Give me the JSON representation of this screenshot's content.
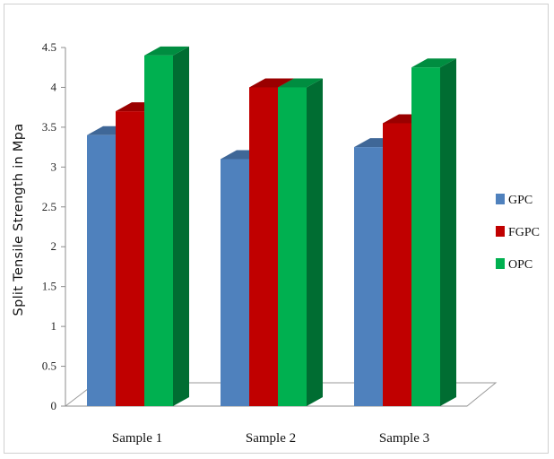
{
  "chart_data": {
    "type": "bar",
    "title": "",
    "xlabel": "",
    "ylabel": "Split Tensile Strength in Mpa",
    "categories": [
      "Sample 1",
      "Sample 2",
      "Sample 3"
    ],
    "series": [
      {
        "name": "GPC",
        "values": [
          3.4,
          3.1,
          3.25
        ],
        "color": "#4f81bd"
      },
      {
        "name": "FGPC",
        "values": [
          3.7,
          4.0,
          3.55
        ],
        "color": "#c00000"
      },
      {
        "name": "OPC",
        "values": [
          4.4,
          4.0,
          4.25
        ],
        "color": "#00b050"
      }
    ],
    "ylim": [
      0,
      4.5
    ],
    "yticks": [
      "0",
      "0.5",
      "1",
      "1.5",
      "2",
      "2.5",
      "3",
      "3.5",
      "4",
      "4.5"
    ],
    "grid": false,
    "legend": "right",
    "style": "3d-clustered-column"
  }
}
